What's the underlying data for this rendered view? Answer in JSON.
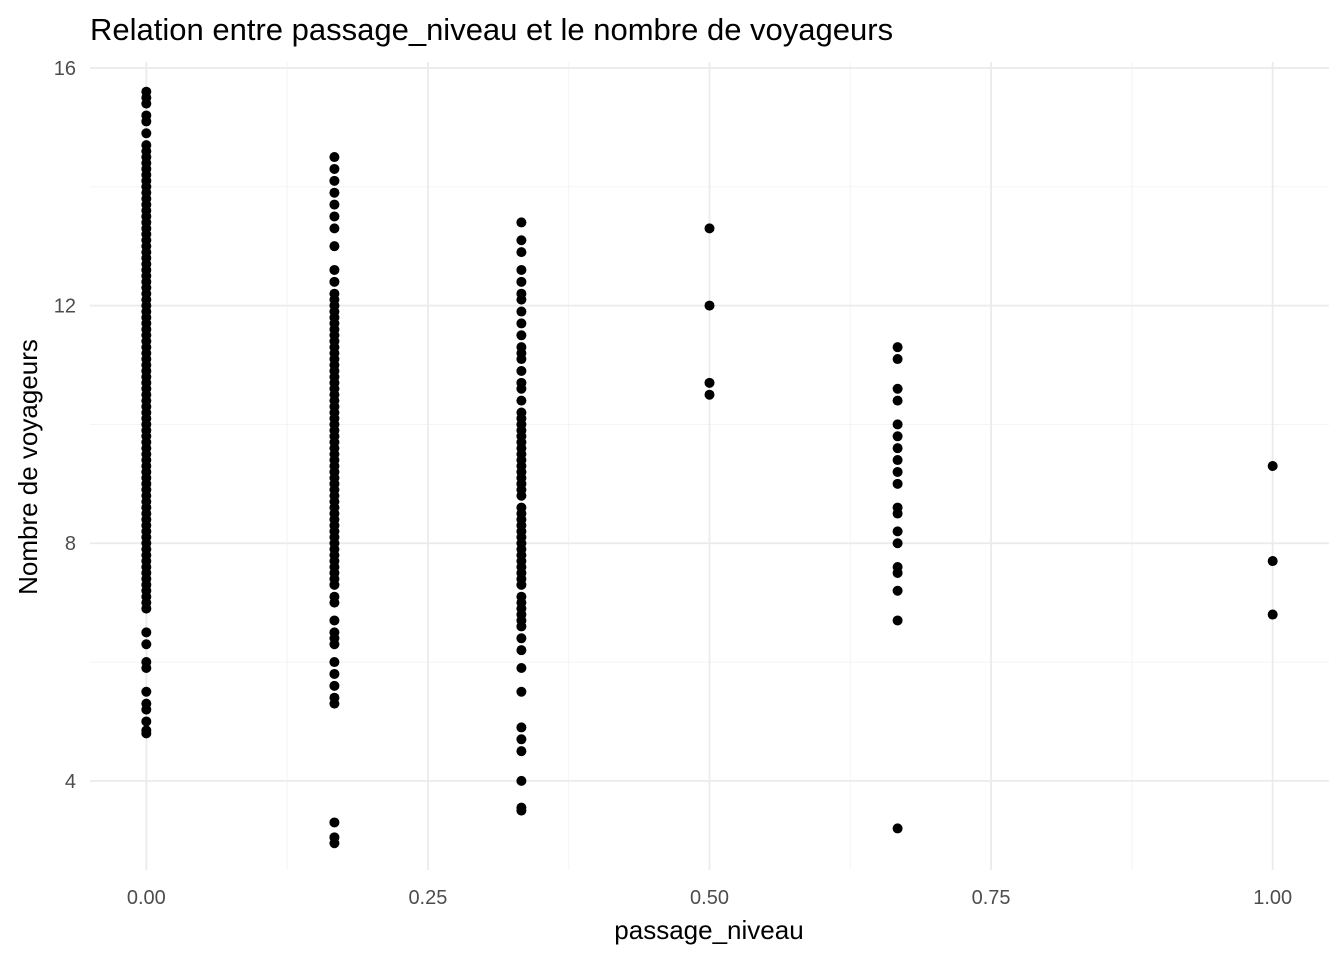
{
  "chart_data": {
    "type": "scatter",
    "title": "Relation entre passage_niveau et le nombre de voyageurs",
    "xlabel": "passage_niveau",
    "ylabel": "Nombre de voyageurs",
    "xlim": [
      -0.05,
      1.05
    ],
    "ylim": [
      2.5,
      16.1
    ],
    "x_ticks": [
      "0.00",
      "0.25",
      "0.50",
      "0.75",
      "1.00"
    ],
    "y_ticks": [
      "4",
      "8",
      "12",
      "16"
    ],
    "grid": true,
    "point_color": "#000000",
    "points": [
      [
        0,
        15.6
      ],
      [
        0,
        15.5
      ],
      [
        0,
        15.4
      ],
      [
        0,
        15.2
      ],
      [
        0,
        15.1
      ],
      [
        0,
        14.9
      ],
      [
        0,
        14.7
      ],
      [
        0,
        14.6
      ],
      [
        0,
        14.5
      ],
      [
        0,
        14.4
      ],
      [
        0,
        14.3
      ],
      [
        0,
        14.2
      ],
      [
        0,
        14.1
      ],
      [
        0,
        14.0
      ],
      [
        0,
        13.9
      ],
      [
        0,
        13.8
      ],
      [
        0,
        13.7
      ],
      [
        0,
        13.6
      ],
      [
        0,
        13.5
      ],
      [
        0,
        13.4
      ],
      [
        0,
        13.3
      ],
      [
        0,
        13.2
      ],
      [
        0,
        13.1
      ],
      [
        0,
        13.0
      ],
      [
        0,
        12.9
      ],
      [
        0,
        12.8
      ],
      [
        0,
        12.7
      ],
      [
        0,
        12.6
      ],
      [
        0,
        12.5
      ],
      [
        0,
        12.4
      ],
      [
        0,
        12.3
      ],
      [
        0,
        12.2
      ],
      [
        0,
        12.1
      ],
      [
        0,
        12.0
      ],
      [
        0,
        11.9
      ],
      [
        0,
        11.8
      ],
      [
        0,
        11.7
      ],
      [
        0,
        11.6
      ],
      [
        0,
        11.5
      ],
      [
        0,
        11.4
      ],
      [
        0,
        11.3
      ],
      [
        0,
        11.2
      ],
      [
        0,
        11.1
      ],
      [
        0,
        11.0
      ],
      [
        0,
        10.9
      ],
      [
        0,
        10.8
      ],
      [
        0,
        10.7
      ],
      [
        0,
        10.6
      ],
      [
        0,
        10.5
      ],
      [
        0,
        10.4
      ],
      [
        0,
        10.3
      ],
      [
        0,
        10.2
      ],
      [
        0,
        10.1
      ],
      [
        0,
        10.0
      ],
      [
        0,
        9.9
      ],
      [
        0,
        9.8
      ],
      [
        0,
        9.7
      ],
      [
        0,
        9.6
      ],
      [
        0,
        9.5
      ],
      [
        0,
        9.4
      ],
      [
        0,
        9.3
      ],
      [
        0,
        9.2
      ],
      [
        0,
        9.1
      ],
      [
        0,
        9.0
      ],
      [
        0,
        8.9
      ],
      [
        0,
        8.8
      ],
      [
        0,
        8.7
      ],
      [
        0,
        8.6
      ],
      [
        0,
        8.5
      ],
      [
        0,
        8.4
      ],
      [
        0,
        8.3
      ],
      [
        0,
        8.2
      ],
      [
        0,
        8.1
      ],
      [
        0,
        8.0
      ],
      [
        0,
        7.9
      ],
      [
        0,
        7.8
      ],
      [
        0,
        7.7
      ],
      [
        0,
        7.6
      ],
      [
        0,
        7.5
      ],
      [
        0,
        7.4
      ],
      [
        0,
        7.3
      ],
      [
        0,
        7.2
      ],
      [
        0,
        7.1
      ],
      [
        0,
        7.0
      ],
      [
        0,
        6.9
      ],
      [
        0,
        6.5
      ],
      [
        0,
        6.3
      ],
      [
        0,
        6.0
      ],
      [
        0,
        5.9
      ],
      [
        0,
        5.5
      ],
      [
        0,
        5.3
      ],
      [
        0,
        5.2
      ],
      [
        0,
        5.0
      ],
      [
        0,
        4.85
      ],
      [
        0,
        4.8
      ],
      [
        0.167,
        14.5
      ],
      [
        0.167,
        14.3
      ],
      [
        0.167,
        14.1
      ],
      [
        0.167,
        13.9
      ],
      [
        0.167,
        13.7
      ],
      [
        0.167,
        13.5
      ],
      [
        0.167,
        13.3
      ],
      [
        0.167,
        13.0
      ],
      [
        0.167,
        12.6
      ],
      [
        0.167,
        12.4
      ],
      [
        0.167,
        12.2
      ],
      [
        0.167,
        12.1
      ],
      [
        0.167,
        12.0
      ],
      [
        0.167,
        11.9
      ],
      [
        0.167,
        11.8
      ],
      [
        0.167,
        11.7
      ],
      [
        0.167,
        11.6
      ],
      [
        0.167,
        11.5
      ],
      [
        0.167,
        11.4
      ],
      [
        0.167,
        11.3
      ],
      [
        0.167,
        11.2
      ],
      [
        0.167,
        11.1
      ],
      [
        0.167,
        11.0
      ],
      [
        0.167,
        10.9
      ],
      [
        0.167,
        10.8
      ],
      [
        0.167,
        10.7
      ],
      [
        0.167,
        10.6
      ],
      [
        0.167,
        10.5
      ],
      [
        0.167,
        10.4
      ],
      [
        0.167,
        10.3
      ],
      [
        0.167,
        10.2
      ],
      [
        0.167,
        10.1
      ],
      [
        0.167,
        10.0
      ],
      [
        0.167,
        9.9
      ],
      [
        0.167,
        9.8
      ],
      [
        0.167,
        9.7
      ],
      [
        0.167,
        9.6
      ],
      [
        0.167,
        9.5
      ],
      [
        0.167,
        9.4
      ],
      [
        0.167,
        9.3
      ],
      [
        0.167,
        9.2
      ],
      [
        0.167,
        9.1
      ],
      [
        0.167,
        9.0
      ],
      [
        0.167,
        8.9
      ],
      [
        0.167,
        8.8
      ],
      [
        0.167,
        8.7
      ],
      [
        0.167,
        8.6
      ],
      [
        0.167,
        8.5
      ],
      [
        0.167,
        8.4
      ],
      [
        0.167,
        8.3
      ],
      [
        0.167,
        8.2
      ],
      [
        0.167,
        8.1
      ],
      [
        0.167,
        8.0
      ],
      [
        0.167,
        7.9
      ],
      [
        0.167,
        7.8
      ],
      [
        0.167,
        7.7
      ],
      [
        0.167,
        7.6
      ],
      [
        0.167,
        7.5
      ],
      [
        0.167,
        7.4
      ],
      [
        0.167,
        7.3
      ],
      [
        0.167,
        7.1
      ],
      [
        0.167,
        7.0
      ],
      [
        0.167,
        6.7
      ],
      [
        0.167,
        6.5
      ],
      [
        0.167,
        6.4
      ],
      [
        0.167,
        6.3
      ],
      [
        0.167,
        6.0
      ],
      [
        0.167,
        5.8
      ],
      [
        0.167,
        5.6
      ],
      [
        0.167,
        5.4
      ],
      [
        0.167,
        5.3
      ],
      [
        0.167,
        3.3
      ],
      [
        0.167,
        3.05
      ],
      [
        0.167,
        2.95
      ],
      [
        0.333,
        13.4
      ],
      [
        0.333,
        13.1
      ],
      [
        0.333,
        12.9
      ],
      [
        0.333,
        12.6
      ],
      [
        0.333,
        12.4
      ],
      [
        0.333,
        12.2
      ],
      [
        0.333,
        12.1
      ],
      [
        0.333,
        11.9
      ],
      [
        0.333,
        11.7
      ],
      [
        0.333,
        11.5
      ],
      [
        0.333,
        11.3
      ],
      [
        0.333,
        11.2
      ],
      [
        0.333,
        11.1
      ],
      [
        0.333,
        10.9
      ],
      [
        0.333,
        10.7
      ],
      [
        0.333,
        10.6
      ],
      [
        0.333,
        10.4
      ],
      [
        0.333,
        10.2
      ],
      [
        0.333,
        10.1
      ],
      [
        0.333,
        10.0
      ],
      [
        0.333,
        9.9
      ],
      [
        0.333,
        9.8
      ],
      [
        0.333,
        9.7
      ],
      [
        0.333,
        9.6
      ],
      [
        0.333,
        9.5
      ],
      [
        0.333,
        9.4
      ],
      [
        0.333,
        9.3
      ],
      [
        0.333,
        9.2
      ],
      [
        0.333,
        9.1
      ],
      [
        0.333,
        9.0
      ],
      [
        0.333,
        8.9
      ],
      [
        0.333,
        8.8
      ],
      [
        0.333,
        8.6
      ],
      [
        0.333,
        8.5
      ],
      [
        0.333,
        8.4
      ],
      [
        0.333,
        8.3
      ],
      [
        0.333,
        8.2
      ],
      [
        0.333,
        8.1
      ],
      [
        0.333,
        8.0
      ],
      [
        0.333,
        7.9
      ],
      [
        0.333,
        7.8
      ],
      [
        0.333,
        7.7
      ],
      [
        0.333,
        7.6
      ],
      [
        0.333,
        7.5
      ],
      [
        0.333,
        7.4
      ],
      [
        0.333,
        7.3
      ],
      [
        0.333,
        7.1
      ],
      [
        0.333,
        7.0
      ],
      [
        0.333,
        6.9
      ],
      [
        0.333,
        6.8
      ],
      [
        0.333,
        6.7
      ],
      [
        0.333,
        6.6
      ],
      [
        0.333,
        6.4
      ],
      [
        0.333,
        6.2
      ],
      [
        0.333,
        5.9
      ],
      [
        0.333,
        5.5
      ],
      [
        0.333,
        4.9
      ],
      [
        0.333,
        4.7
      ],
      [
        0.333,
        4.5
      ],
      [
        0.333,
        4.0
      ],
      [
        0.333,
        3.55
      ],
      [
        0.333,
        3.5
      ],
      [
        0.5,
        13.3
      ],
      [
        0.5,
        12.0
      ],
      [
        0.5,
        10.7
      ],
      [
        0.5,
        10.5
      ],
      [
        0.667,
        11.3
      ],
      [
        0.667,
        11.1
      ],
      [
        0.667,
        10.6
      ],
      [
        0.667,
        10.4
      ],
      [
        0.667,
        10.0
      ],
      [
        0.667,
        9.8
      ],
      [
        0.667,
        9.6
      ],
      [
        0.667,
        9.4
      ],
      [
        0.667,
        9.2
      ],
      [
        0.667,
        9.0
      ],
      [
        0.667,
        8.6
      ],
      [
        0.667,
        8.5
      ],
      [
        0.667,
        8.2
      ],
      [
        0.667,
        8.0
      ],
      [
        0.667,
        7.6
      ],
      [
        0.667,
        7.5
      ],
      [
        0.667,
        7.2
      ],
      [
        0.667,
        6.7
      ],
      [
        0.667,
        3.2
      ],
      [
        1.0,
        9.3
      ],
      [
        1.0,
        7.7
      ],
      [
        1.0,
        6.8
      ]
    ]
  }
}
